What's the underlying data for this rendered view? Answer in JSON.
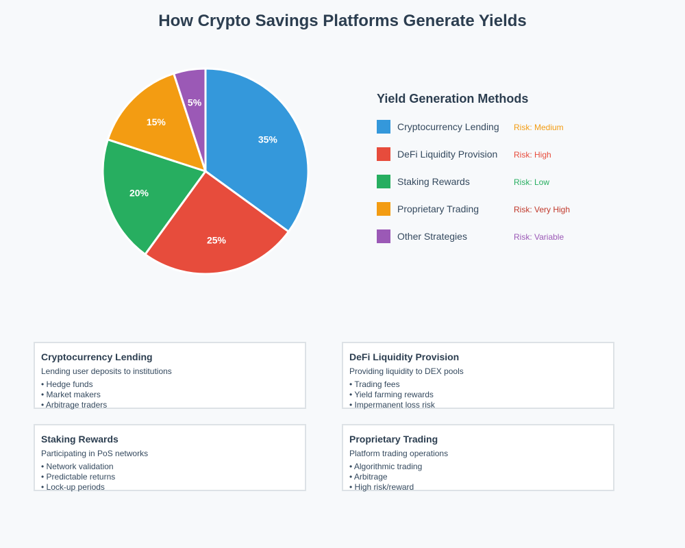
{
  "title": "How Crypto Savings Platforms Generate Yields",
  "chart_data": {
    "type": "pie",
    "title": "How Crypto Savings Platforms Generate Yields",
    "categories": [
      "Cryptocurrency Lending",
      "DeFi Liquidity Provision",
      "Staking Rewards",
      "Proprietary Trading",
      "Other Strategies"
    ],
    "values": [
      35,
      25,
      20,
      15,
      5
    ],
    "value_labels": [
      "35%",
      "25%",
      "20%",
      "15%",
      "5%"
    ],
    "colors": [
      "#3498db",
      "#e74c3c",
      "#27ae60",
      "#f39c12",
      "#9b59b6"
    ],
    "start_angle_deg": 0,
    "direction": "clockwise",
    "legend_position": "right"
  },
  "legend": {
    "title": "Yield Generation Methods",
    "items": [
      {
        "label": "Cryptocurrency Lending",
        "risk": "Risk: Medium",
        "color": "#3498db",
        "risk_color": "#f39c12"
      },
      {
        "label": "DeFi Liquidity Provision",
        "risk": "Risk: High",
        "color": "#e74c3c",
        "risk_color": "#e74c3c"
      },
      {
        "label": "Staking Rewards",
        "risk": "Risk: Low",
        "color": "#27ae60",
        "risk_color": "#27ae60"
      },
      {
        "label": "Proprietary Trading",
        "risk": "Risk: Very High",
        "color": "#f39c12",
        "risk_color": "#c0392b"
      },
      {
        "label": "Other Strategies",
        "risk": "Risk: Variable",
        "color": "#9b59b6",
        "risk_color": "#9b59b6"
      }
    ]
  },
  "cards": [
    {
      "title": "Cryptocurrency Lending",
      "description": "Lending user deposits to institutions",
      "bullets": [
        "• Hedge funds",
        "• Market makers",
        "• Arbitrage traders"
      ]
    },
    {
      "title": "DeFi Liquidity Provision",
      "description": "Providing liquidity to DEX pools",
      "bullets": [
        "• Trading fees",
        "• Yield farming rewards",
        "• Impermanent loss risk"
      ]
    },
    {
      "title": "Staking Rewards",
      "description": "Participating in PoS networks",
      "bullets": [
        "• Network validation",
        "• Predictable returns",
        "• Lock-up periods"
      ]
    },
    {
      "title": "Proprietary Trading",
      "description": "Platform trading operations",
      "bullets": [
        "• Algorithmic trading",
        "• Arbitrage",
        "• High risk/reward"
      ]
    }
  ]
}
